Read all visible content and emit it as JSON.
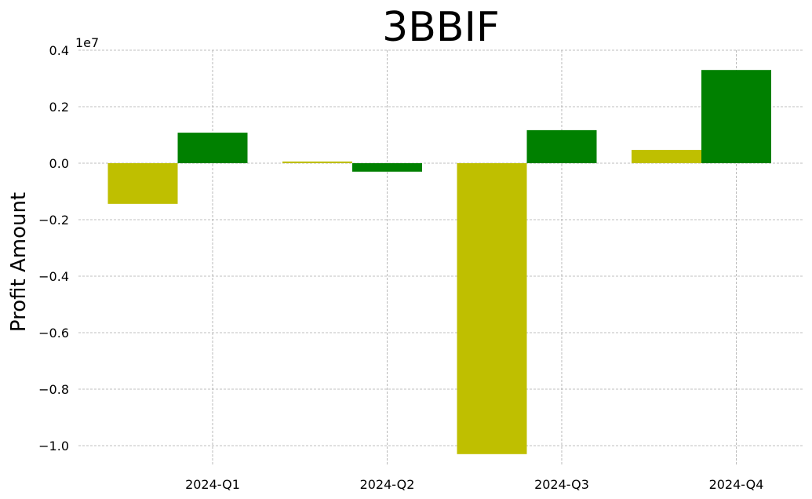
{
  "chart_data": {
    "type": "bar",
    "title": "3BBIF",
    "y_label": "Profit Amount",
    "y_offset_label": "1e7",
    "categories": [
      "2024-Q1",
      "2024-Q2",
      "2024-Q3",
      "2024-Q4"
    ],
    "series": [
      {
        "color": "#bfbf00",
        "values": [
          -1440000,
          60000,
          -10300000,
          470000
        ]
      },
      {
        "color": "#008000",
        "values": [
          1080000,
          -300000,
          1170000,
          3300000
        ]
      }
    ],
    "ylim": [
      -10500000,
      4000000
    ],
    "yticks": [
      {
        "value": 4000000,
        "label": "0.4"
      },
      {
        "value": 2000000,
        "label": "0.2"
      },
      {
        "value": 0,
        "label": "0.0"
      },
      {
        "value": -2000000,
        "label": "−0.2"
      },
      {
        "value": -4000000,
        "label": "−0.4"
      },
      {
        "value": -6000000,
        "label": "−0.6"
      },
      {
        "value": -8000000,
        "label": "−0.8"
      },
      {
        "value": -10000000,
        "label": "−1.0"
      }
    ],
    "grid": true
  }
}
